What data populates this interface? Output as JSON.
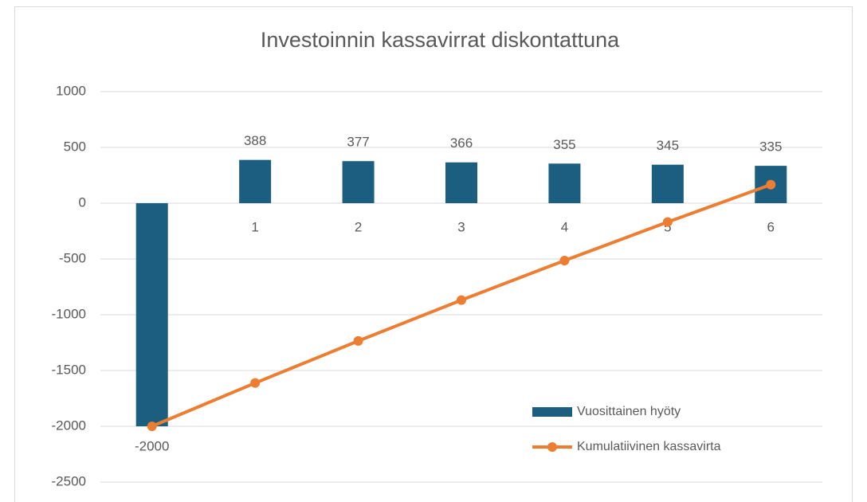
{
  "chart_data": {
    "type": "bar",
    "title": "Investoinnin kassavirrat diskontattuna",
    "categories": [
      "0",
      "1",
      "2",
      "3",
      "4",
      "5",
      "6"
    ],
    "series": [
      {
        "name": "Vuosittainen hyöty",
        "type": "bar",
        "color": "#1b5e80",
        "values": [
          -2000,
          388,
          377,
          366,
          355,
          345,
          335
        ]
      },
      {
        "name": "Kumulatiivinen kassavirta",
        "type": "line",
        "color": "#ed7d31",
        "values": [
          -2000,
          -1612,
          -1235,
          -869,
          -514,
          -169,
          166
        ]
      }
    ],
    "ylim": [
      -2500,
      1000
    ],
    "yticks": [
      -2500,
      -2000,
      -1500,
      -1000,
      -500,
      0,
      500,
      1000
    ],
    "grid": true,
    "legend": "lower right"
  }
}
